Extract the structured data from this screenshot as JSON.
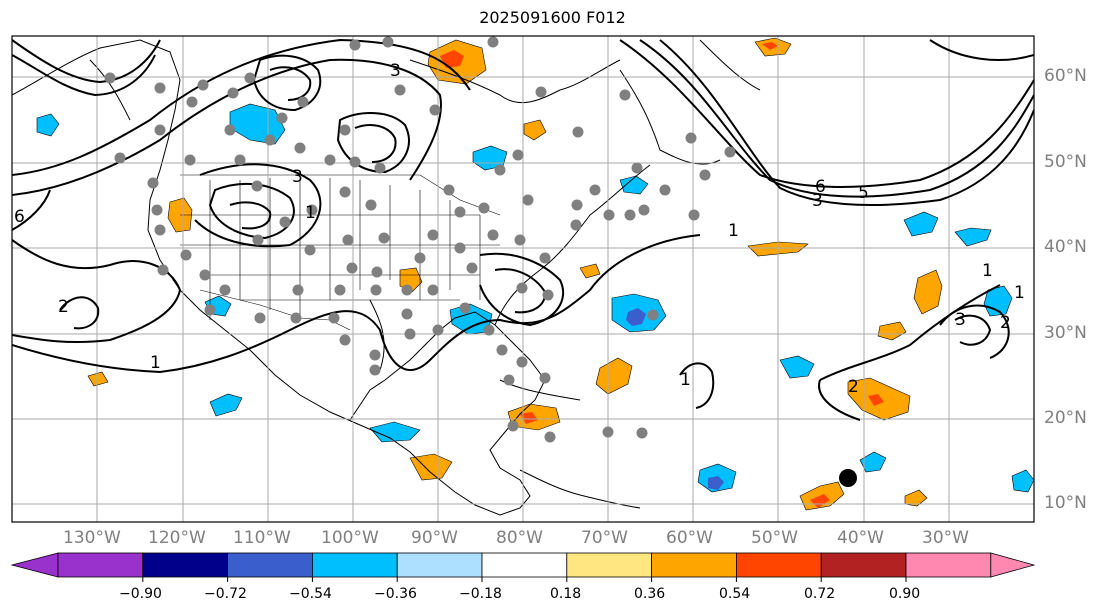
{
  "title": "2025091600 F012",
  "longitude_labels": [
    "130°W",
    "120°W",
    "110°W",
    "100°W",
    "90°W",
    "80°W",
    "70°W",
    "60°W",
    "50°W",
    "40°W",
    "30°W"
  ],
  "latitude_labels": [
    "60°N",
    "50°N",
    "40°N",
    "30°N",
    "20°N",
    "10°N"
  ],
  "contour_labels": [
    "1",
    "1",
    "1",
    "1",
    "1",
    "1",
    "2",
    "2",
    "2",
    "3",
    "3",
    "3",
    "3",
    "5",
    "6",
    "6"
  ],
  "colorbar": {
    "tick_labels": [
      "−0.90",
      "−0.72",
      "−0.54",
      "−0.36",
      "−0.18",
      "0.18",
      "0.36",
      "0.54",
      "0.72",
      "0.90"
    ],
    "colors": [
      "#9932CC",
      "#00008B",
      "#3A5FCD",
      "#00BFFF",
      "#ADDFFF",
      "#FFFFFF",
      "#FFE680",
      "#FFA500",
      "#FF4500",
      "#B22222",
      "#FF88B0"
    ]
  },
  "colors": {
    "gridline": "#aaaaaa",
    "coastline": "#000000",
    "station_marker": "#808080",
    "storm_marker": "#000000"
  }
}
